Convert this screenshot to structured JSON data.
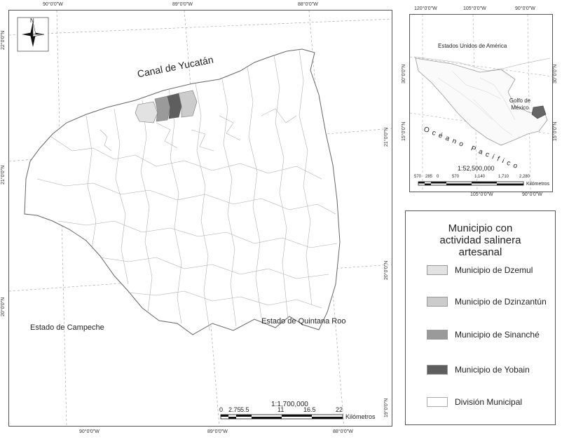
{
  "main_map": {
    "top_ticks": [
      "90°0'0\"W",
      "89°0'0\"W",
      "88°0'0\"W"
    ],
    "bottom_ticks": [
      "90°0'0\"W",
      "89°0'0\"W",
      "88°0'0\"W"
    ],
    "left_ticks": [
      "22°0'0\"N",
      "21°0'0\"N",
      "20°0'0\"N"
    ],
    "right_ticks": [
      "21°0'0\"N",
      "20°0'0\"N",
      "19°0'0\"N"
    ],
    "labels": {
      "sea": "Canal de Yucatán",
      "west_state": "Estado de Campeche",
      "east_state": "Estado de Quintana Roo"
    },
    "north_arrow": "N",
    "scale": {
      "ratio": "1:1,700,000",
      "ticks": [
        "0",
        "2.75",
        "5.5",
        "11",
        "16.5",
        "22"
      ],
      "unit": "Kilómetros"
    }
  },
  "inset_map": {
    "top_ticks": [
      "120°0'0\"W",
      "105°0'0\"W",
      "90°0'0\"W"
    ],
    "bottom_ticks": [
      "105°0'0\"W",
      "90°0'0\"W"
    ],
    "left_ticks": [
      "30°0'0\"N",
      "15°0'0\"N"
    ],
    "right_ticks": [
      "30°0'0\"N",
      "15°0'0\"N"
    ],
    "labels": {
      "usa": "Estados Unidos de América",
      "gulf": "Golfo de México",
      "ocean": "Océano Pacífico"
    },
    "scale": {
      "ratio": "1:52,500,000",
      "ticks": [
        "570",
        "285",
        "0",
        "570",
        "1,140",
        "1,710",
        "2,280"
      ],
      "unit": "Kilómetros"
    }
  },
  "legend": {
    "title": "Municipio con actividad salinera artesanal",
    "items": [
      {
        "label": "Municipio de Dzemul",
        "color": "#e2e2e2"
      },
      {
        "label": "Municipio de Dzinzantún",
        "color": "#cccccc"
      },
      {
        "label": "Municipio de Sinanché",
        "color": "#9a9a9a"
      },
      {
        "label": "Municipio de Yobain",
        "color": "#5e5e5e"
      },
      {
        "label": "División Municipal",
        "color": "#ffffff"
      }
    ]
  }
}
